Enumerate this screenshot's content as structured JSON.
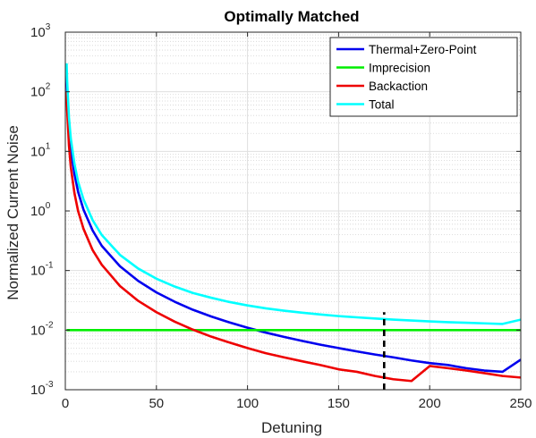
{
  "chart_data": {
    "type": "line",
    "title": "Optimally Matched",
    "xlabel": "Detuning",
    "ylabel": "Normalized Current Noise",
    "xlim": [
      0,
      250
    ],
    "ylim": [
      0.001,
      1000
    ],
    "yscale": "log",
    "grid": true,
    "minor_grid": true,
    "legend_position": "top-right",
    "x_ticks": [
      0,
      50,
      100,
      150,
      200,
      250
    ],
    "x_tick_labels": [
      "0",
      "50",
      "100",
      "150",
      "200",
      "250"
    ],
    "y_ticks": [
      0.001,
      0.01,
      0.1,
      1,
      10,
      100,
      1000
    ],
    "y_tick_labels": [
      {
        "base": "10",
        "exp": "-3"
      },
      {
        "base": "10",
        "exp": "-2"
      },
      {
        "base": "10",
        "exp": "-1"
      },
      {
        "base": "10",
        "exp": "0"
      },
      {
        "base": "10",
        "exp": "1"
      },
      {
        "base": "10",
        "exp": "2"
      },
      {
        "base": "10",
        "exp": "3"
      }
    ],
    "x": [
      0.7,
      1,
      2,
      3,
      5,
      7,
      10,
      15,
      20,
      30,
      40,
      50,
      60,
      70,
      80,
      90,
      100,
      110,
      120,
      130,
      140,
      150,
      160,
      170,
      180,
      190,
      200,
      210,
      220,
      230,
      240,
      250
    ],
    "series": [
      {
        "name": "Thermal+Zero-Point",
        "color": "#0000ee",
        "values": [
          200,
          98,
          25,
          11,
          4.2,
          2.1,
          1.05,
          0.47,
          0.26,
          0.118,
          0.067,
          0.043,
          0.03,
          0.022,
          0.017,
          0.0135,
          0.011,
          0.0091,
          0.0077,
          0.0066,
          0.0057,
          0.005,
          0.0044,
          0.0039,
          0.0035,
          0.0031,
          0.0028,
          0.0026,
          0.0023,
          0.0021,
          0.002,
          0.0032
        ]
      },
      {
        "name": "Imprecision",
        "color": "#00ee00",
        "values": [
          0.01,
          0.01,
          0.01,
          0.01,
          0.01,
          0.01,
          0.01,
          0.01,
          0.01,
          0.01,
          0.01,
          0.01,
          0.01,
          0.01,
          0.01,
          0.01,
          0.01,
          0.01,
          0.01,
          0.01,
          0.01,
          0.01,
          0.01,
          0.01,
          0.01,
          0.01,
          0.01,
          0.01,
          0.01,
          0.01,
          0.01,
          0.01
        ]
      },
      {
        "name": "Backaction",
        "color": "#ee0000",
        "values": [
          100,
          50,
          12.5,
          5.5,
          2.0,
          1.0,
          0.5,
          0.22,
          0.125,
          0.055,
          0.031,
          0.02,
          0.0139,
          0.0102,
          0.0078,
          0.0062,
          0.005,
          0.0041,
          0.0035,
          0.003,
          0.0026,
          0.0022,
          0.002,
          0.0017,
          0.0015,
          0.0014,
          0.0025,
          0.0023,
          0.0021,
          0.0019,
          0.0017,
          0.0016
        ]
      },
      {
        "name": "Total",
        "color": "#00ffff",
        "values": [
          300,
          150,
          37,
          16.5,
          6.2,
          3.1,
          1.56,
          0.7,
          0.395,
          0.183,
          0.108,
          0.073,
          0.054,
          0.042,
          0.035,
          0.0297,
          0.026,
          0.0232,
          0.0212,
          0.0196,
          0.0183,
          0.0172,
          0.0164,
          0.0157,
          0.015,
          0.0145,
          0.014,
          0.0136,
          0.0133,
          0.013,
          0.0127,
          0.015
        ]
      }
    ],
    "annotations": [
      {
        "type": "vertical-dashed-line",
        "x": 175,
        "y_from": 0.001,
        "y_to": 0.02,
        "color": "#000000"
      }
    ]
  }
}
